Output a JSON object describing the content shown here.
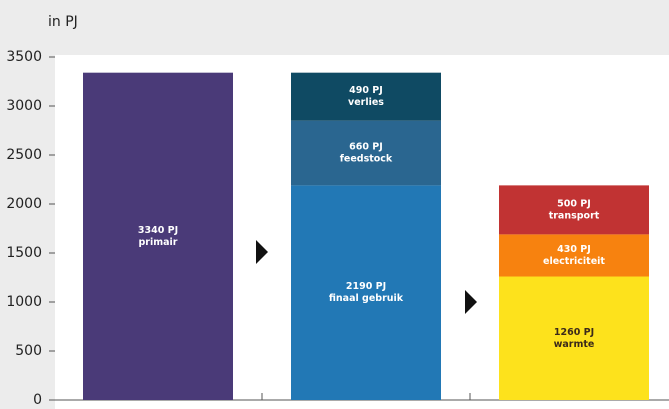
{
  "chart_data": {
    "type": "stacked-bar",
    "y_label": "in PJ",
    "categories": [
      null,
      null,
      null
    ],
    "series": [
      {
        "name": "primair",
        "color": "#4a3a78",
        "label_color": "#ffffff",
        "values": [
          3340,
          null,
          null
        ],
        "value_labels": [
          "3340 PJ",
          null,
          null
        ]
      },
      {
        "name": "finaal gebruik",
        "color": "#2278b5",
        "label_color": "#ffffff",
        "values": [
          null,
          2190,
          null
        ],
        "value_labels": [
          null,
          "2190 PJ",
          null
        ]
      },
      {
        "name": "feedstock",
        "color": "#2a6690",
        "label_color": "#ffffff",
        "values": [
          null,
          660,
          null
        ],
        "value_labels": [
          null,
          "660 PJ",
          null
        ]
      },
      {
        "name": "verlies",
        "color": "#0f4a63",
        "label_color": "#ffffff",
        "values": [
          null,
          490,
          null
        ],
        "value_labels": [
          null,
          "490 PJ",
          null
        ]
      },
      {
        "name": "warmte",
        "color": "#fde21c",
        "label_color": "#3b2a1a",
        "values": [
          null,
          null,
          1260
        ],
        "value_labels": [
          null,
          null,
          "1260 PJ"
        ]
      },
      {
        "name": "electriciteit",
        "color": "#f7820f",
        "label_color": "#ffffff",
        "values": [
          null,
          null,
          430
        ],
        "value_labels": [
          null,
          null,
          "430 PJ"
        ]
      },
      {
        "name": "transport",
        "color": "#c13333",
        "label_color": "#ffffff",
        "values": [
          null,
          null,
          500
        ],
        "value_labels": [
          null,
          null,
          "500 PJ"
        ]
      }
    ],
    "ylim": [
      0,
      3500
    ],
    "yticks": [
      0,
      500,
      1000,
      1500,
      2000,
      2500,
      3000,
      3500
    ]
  }
}
